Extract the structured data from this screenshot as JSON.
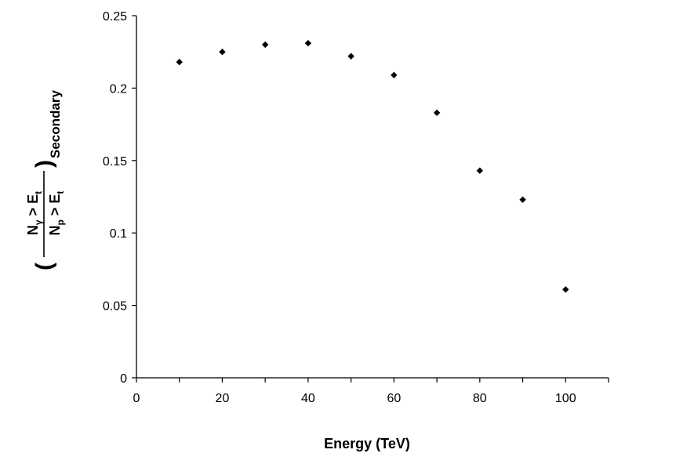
{
  "chart_data": {
    "type": "scatter",
    "x": [
      10,
      20,
      30,
      40,
      50,
      60,
      70,
      80,
      90,
      100
    ],
    "y": [
      0.218,
      0.225,
      0.23,
      0.231,
      0.222,
      0.209,
      0.183,
      0.143,
      0.123,
      0.061
    ],
    "xlabel": "Energy (TeV)",
    "ylabel": {
      "numerator_main": "N",
      "numerator_sub": "γ",
      "numerator_rest": " > E",
      "numerator_rest_sub": "t",
      "denominator_main": "N",
      "denominator_sub": "p",
      "denominator_rest": " > E",
      "denominator_rest_sub": "t",
      "subscript_label": "Secondary"
    },
    "xlim": [
      0,
      110
    ],
    "ylim": [
      0,
      0.25
    ],
    "x_ticks": [
      0,
      20,
      40,
      60,
      80,
      100
    ],
    "x_tick_labels": [
      "0",
      "20",
      "40",
      "60",
      "80",
      "100"
    ],
    "y_ticks": [
      0,
      0.05,
      0.1,
      0.15,
      0.2,
      0.25
    ],
    "y_tick_labels": [
      "0",
      "0.05",
      "0.1",
      "0.15",
      "0.2",
      "0.25"
    ],
    "grid": false,
    "marker": "diamond",
    "marker_color": "#000000"
  }
}
